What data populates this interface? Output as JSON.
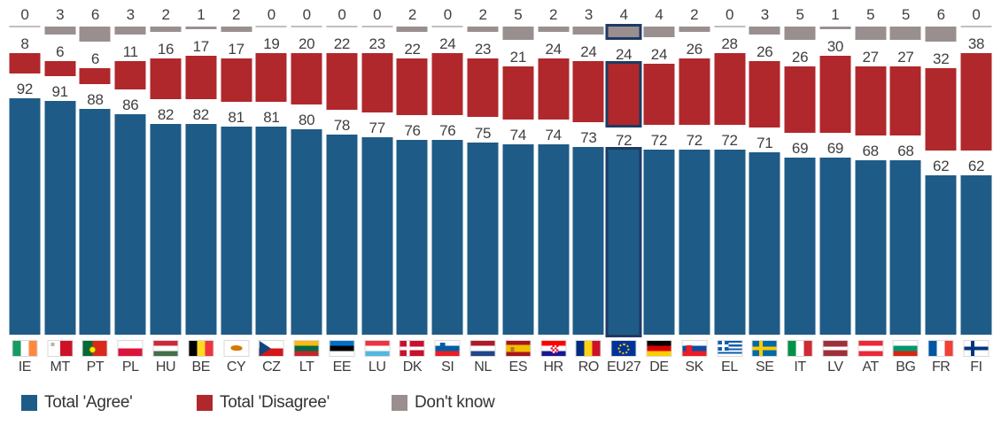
{
  "chart_data": {
    "type": "bar",
    "title": "",
    "xlabel": "",
    "ylabel": "",
    "ylim": [
      0,
      100
    ],
    "grid": false,
    "legend_position": "bottom",
    "highlight_category": "EU27",
    "highlight_border_color": "#1E3A63",
    "categories": [
      "IE",
      "MT",
      "PT",
      "PL",
      "HU",
      "BE",
      "CY",
      "CZ",
      "LT",
      "EE",
      "LU",
      "DK",
      "SI",
      "NL",
      "ES",
      "HR",
      "RO",
      "EU27",
      "DE",
      "SK",
      "EL",
      "SE",
      "IT",
      "LV",
      "AT",
      "BG",
      "FR",
      "FI"
    ],
    "series": [
      {
        "name": "Total 'Agree'",
        "color": "#1F5B87",
        "values": [
          92,
          91,
          88,
          86,
          82,
          82,
          81,
          81,
          80,
          78,
          77,
          76,
          76,
          75,
          74,
          74,
          73,
          72,
          72,
          72,
          72,
          71,
          69,
          69,
          68,
          68,
          62,
          62
        ]
      },
      {
        "name": "Total 'Disagree'",
        "color": "#B0282C",
        "values": [
          8,
          6,
          6,
          11,
          16,
          17,
          17,
          19,
          20,
          22,
          23,
          22,
          24,
          23,
          21,
          24,
          24,
          24,
          24,
          26,
          28,
          26,
          26,
          30,
          27,
          27,
          32,
          38
        ]
      },
      {
        "name": "Don't know",
        "color": "#9A8F8F",
        "values": [
          0,
          3,
          6,
          3,
          2,
          1,
          2,
          0,
          0,
          0,
          0,
          2,
          0,
          2,
          5,
          2,
          3,
          4,
          4,
          2,
          0,
          3,
          5,
          1,
          5,
          5,
          6,
          0
        ]
      }
    ]
  },
  "flags": {
    "IE": "ireland-flag",
    "MT": "malta-flag",
    "PT": "portugal-flag",
    "PL": "poland-flag",
    "HU": "hungary-flag",
    "BE": "belgium-flag",
    "CY": "cyprus-flag",
    "CZ": "czechia-flag",
    "LT": "lithuania-flag",
    "EE": "estonia-flag",
    "LU": "luxembourg-flag",
    "DK": "denmark-flag",
    "SI": "slovenia-flag",
    "NL": "netherlands-flag",
    "ES": "spain-flag",
    "HR": "croatia-flag",
    "RO": "romania-flag",
    "EU27": "eu-flag",
    "DE": "germany-flag",
    "SK": "slovakia-flag",
    "EL": "greece-flag",
    "SE": "sweden-flag",
    "IT": "italy-flag",
    "LV": "latvia-flag",
    "AT": "austria-flag",
    "BG": "bulgaria-flag",
    "FR": "france-flag",
    "FI": "finland-flag"
  }
}
